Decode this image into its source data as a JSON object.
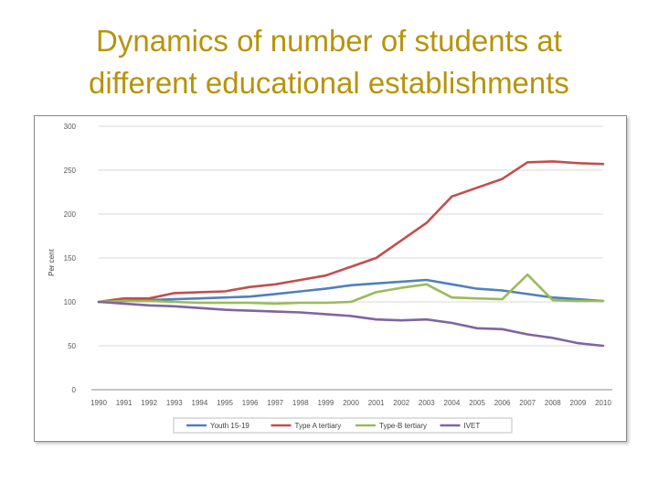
{
  "title": {
    "line1": "Dynamics of number of students at",
    "line2": "different educational establishments"
  },
  "chart_data": {
    "type": "line",
    "title": "",
    "xlabel": "",
    "ylabel": "Per cent",
    "ylim": [
      0,
      300
    ],
    "yticks": [
      0,
      50,
      100,
      150,
      200,
      250,
      300
    ],
    "grid": true,
    "legend_position": "bottom",
    "x": [
      "1990",
      "1991",
      "1992",
      "1993",
      "1994",
      "1995",
      "1996",
      "1997",
      "1998",
      "1999",
      "2000",
      "2001",
      "2002",
      "2003",
      "2004",
      "2005",
      "2006",
      "2007",
      "2008",
      "2009",
      "2010"
    ],
    "series": [
      {
        "name": "Youth 15-19",
        "color": "#4f81bd",
        "values": [
          100,
          101,
          102,
          103,
          104,
          105,
          106,
          109,
          112,
          115,
          119,
          121,
          123,
          125,
          120,
          115,
          113,
          109,
          105,
          103,
          101
        ]
      },
      {
        "name": "Type A tertiary",
        "color": "#c0504d",
        "values": [
          100,
          104,
          104,
          110,
          111,
          112,
          117,
          120,
          125,
          130,
          140,
          150,
          170,
          190,
          220,
          230,
          240,
          259,
          260,
          258,
          257
        ]
      },
      {
        "name": "Type-B tertiary",
        "color": "#9bbb59",
        "values": [
          100,
          101,
          101,
          100,
          99,
          99,
          99,
          98,
          99,
          99,
          100,
          111,
          116,
          120,
          105,
          104,
          103,
          131,
          102,
          101,
          101
        ]
      },
      {
        "name": "IVET",
        "color": "#8064a2",
        "values": [
          100,
          98,
          96,
          95,
          93,
          91,
          90,
          89,
          88,
          86,
          84,
          80,
          79,
          80,
          76,
          70,
          69,
          63,
          59,
          53,
          50
        ]
      }
    ]
  }
}
